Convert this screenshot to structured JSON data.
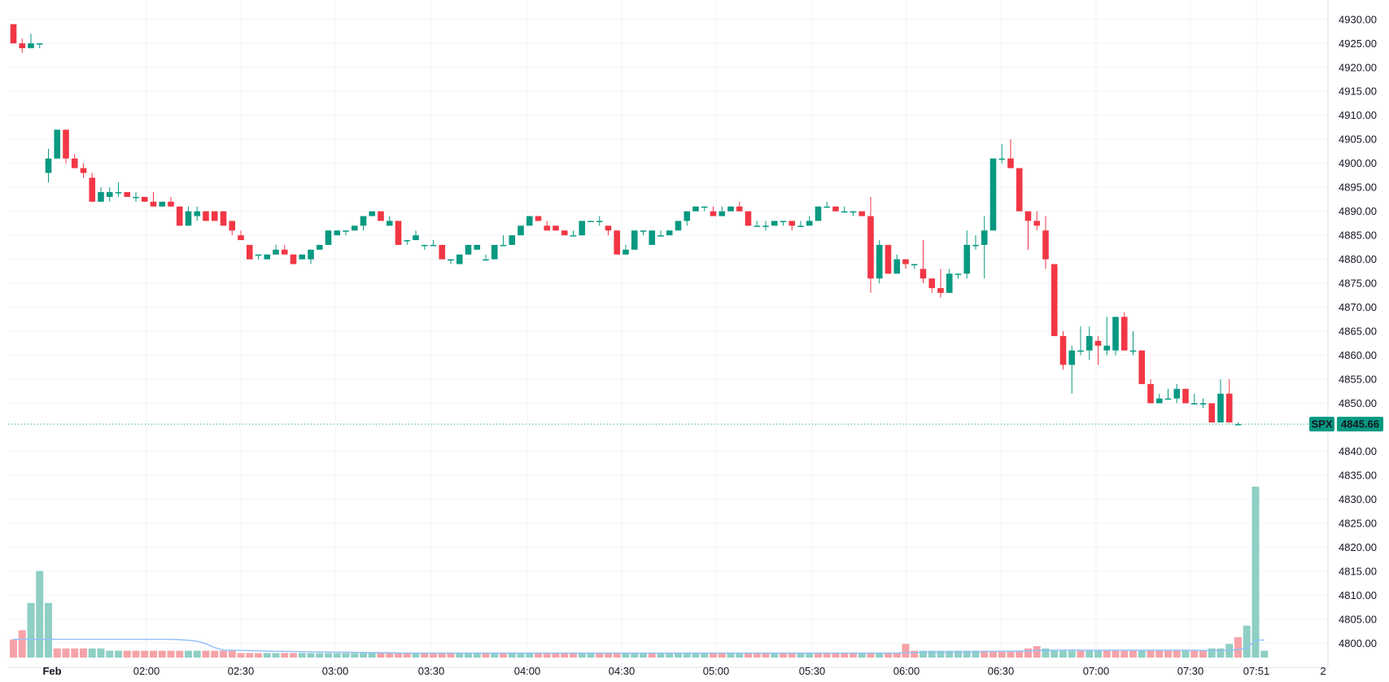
{
  "chart_data": {
    "type": "candlestick",
    "symbol": "SPX",
    "last_price": "4845.66",
    "y_axis": {
      "min": 4797,
      "max": 4932,
      "ticks": [
        "4930.00",
        "4925.00",
        "4920.00",
        "4915.00",
        "4910.00",
        "4905.00",
        "4900.00",
        "4895.00",
        "4890.00",
        "4885.00",
        "4880.00",
        "4875.00",
        "4870.00",
        "4865.00",
        "4860.00",
        "4855.00",
        "4850.00",
        "4840.00",
        "4835.00",
        "4830.00",
        "4825.00",
        "4820.00",
        "4815.00",
        "4810.00",
        "4805.00",
        "4800.00"
      ]
    },
    "x_axis": {
      "ticks": [
        "Feb",
        "02:00",
        "02:30",
        "03:00",
        "03:30",
        "04:00",
        "04:30",
        "05:00",
        "05:30",
        "06:00",
        "06:30",
        "07:00",
        "07:30",
        "07:51",
        "2"
      ]
    },
    "colors": {
      "up": "#089981",
      "down": "#f23645",
      "volume_up": "#8fcfc5",
      "volume_down": "#f5a3a8",
      "ma": "#90bff9",
      "grid": "#f0f3fa"
    },
    "candles": [
      [
        4929,
        4929,
        4925,
        4925
      ],
      [
        4925,
        4926,
        4923,
        4924
      ],
      [
        4924,
        4927,
        4924,
        4925
      ],
      [
        4925,
        4925,
        4924,
        4925
      ],
      [
        4898,
        4903,
        4896,
        4901
      ],
      [
        4901,
        4907,
        4901,
        4907
      ],
      [
        4907,
        4907,
        4900,
        4901
      ],
      [
        4901,
        4902,
        4899,
        4899
      ],
      [
        4899,
        4900,
        4897,
        4898
      ],
      [
        4897,
        4898,
        4892,
        4892
      ],
      [
        4892,
        4895,
        4892,
        4894
      ],
      [
        4893,
        4895,
        4892,
        4894
      ],
      [
        4894,
        4896,
        4893,
        4894
      ],
      [
        4894,
        4894,
        4893,
        4893
      ],
      [
        4893,
        4894,
        4892,
        4893
      ],
      [
        4893,
        4893,
        4892,
        4892
      ],
      [
        4892,
        4894,
        4891,
        4891
      ],
      [
        4891,
        4892,
        4891,
        4892
      ],
      [
        4892,
        4893,
        4891,
        4891
      ],
      [
        4891,
        4891,
        4887,
        4887
      ],
      [
        4887,
        4891,
        4887,
        4890
      ],
      [
        4889,
        4891,
        4888,
        4890
      ],
      [
        4890,
        4890,
        4888,
        4888
      ],
      [
        4890,
        4890,
        4888,
        4888
      ],
      [
        4890,
        4890,
        4887,
        4887
      ],
      [
        4888,
        4888,
        4885,
        4886
      ],
      [
        4885,
        4886,
        4884,
        4884
      ],
      [
        4883,
        4883,
        4880,
        4880
      ],
      [
        4881,
        4881,
        4880,
        4881
      ],
      [
        4880,
        4881,
        4880,
        4881
      ],
      [
        4881,
        4883,
        4881,
        4882
      ],
      [
        4882,
        4883,
        4881,
        4881
      ],
      [
        4881,
        4881,
        4879,
        4879
      ],
      [
        4880,
        4881,
        4880,
        4881
      ],
      [
        4880,
        4882,
        4879,
        4882
      ],
      [
        4882,
        4883,
        4882,
        4883
      ],
      [
        4883,
        4886,
        4883,
        4886
      ],
      [
        4885,
        4886,
        4885,
        4886
      ],
      [
        4886,
        4886,
        4885,
        4886
      ],
      [
        4886,
        4887,
        4886,
        4887
      ],
      [
        4887,
        4889,
        4886,
        4889
      ],
      [
        4889,
        4890,
        4889,
        4890
      ],
      [
        4890,
        4890,
        4888,
        4888
      ],
      [
        4887,
        4889,
        4887,
        4888
      ],
      [
        4888,
        4888,
        4883,
        4883
      ],
      [
        4884,
        4884,
        4883,
        4884
      ],
      [
        4884,
        4886,
        4884,
        4885
      ],
      [
        4883,
        4883,
        4882,
        4883
      ],
      [
        4883,
        4884,
        4883,
        4883
      ],
      [
        4883,
        4883,
        4880,
        4880
      ],
      [
        4880,
        4880,
        4879,
        4880
      ],
      [
        4879,
        4881,
        4879,
        4881
      ],
      [
        4881,
        4883,
        4881,
        4883
      ],
      [
        4882,
        4883,
        4882,
        4883
      ],
      [
        4880,
        4881,
        4880,
        4880
      ],
      [
        4880,
        4883,
        4880,
        4883
      ],
      [
        4883,
        4885,
        4883,
        4883
      ],
      [
        4883,
        4885,
        4883,
        4885
      ],
      [
        4885,
        4887,
        4885,
        4887
      ],
      [
        4887,
        4889,
        4887,
        4889
      ],
      [
        4889,
        4889,
        4888,
        4888
      ],
      [
        4887,
        4888,
        4886,
        4886
      ],
      [
        4887,
        4887,
        4886,
        4886
      ],
      [
        4886,
        4886,
        4885,
        4885
      ],
      [
        4885,
        4886,
        4885,
        4885
      ],
      [
        4885,
        4888,
        4885,
        4888
      ],
      [
        4888,
        4888,
        4888,
        4888
      ],
      [
        4888,
        4889,
        4887,
        4888
      ],
      [
        4887,
        4887,
        4885,
        4886
      ],
      [
        4886,
        4886,
        4881,
        4881
      ],
      [
        4881,
        4883,
        4881,
        4882
      ],
      [
        4882,
        4886,
        4882,
        4886
      ],
      [
        4886,
        4886,
        4885,
        4886
      ],
      [
        4883,
        4886,
        4883,
        4886
      ],
      [
        4885,
        4886,
        4885,
        4885
      ],
      [
        4885,
        4886,
        4885,
        4886
      ],
      [
        4886,
        4888,
        4886,
        4888
      ],
      [
        4888,
        4890,
        4887,
        4890
      ],
      [
        4890,
        4891,
        4890,
        4891
      ],
      [
        4891,
        4891,
        4890,
        4891
      ],
      [
        4890,
        4891,
        4889,
        4889
      ],
      [
        4889,
        4891,
        4889,
        4890
      ],
      [
        4890,
        4891,
        4890,
        4891
      ],
      [
        4891,
        4892,
        4890,
        4890
      ],
      [
        4890,
        4890,
        4887,
        4887
      ],
      [
        4887,
        4888,
        4887,
        4887
      ],
      [
        4887,
        4888,
        4886,
        4887
      ],
      [
        4887,
        4888,
        4887,
        4888
      ],
      [
        4888,
        4888,
        4887,
        4888
      ],
      [
        4888,
        4888,
        4886,
        4887
      ],
      [
        4887,
        4888,
        4887,
        4887
      ],
      [
        4887,
        4889,
        4887,
        4888
      ],
      [
        4888,
        4891,
        4888,
        4891
      ],
      [
        4891,
        4892,
        4891,
        4891
      ],
      [
        4891,
        4891,
        4890,
        4890
      ],
      [
        4890,
        4891,
        4890,
        4890
      ],
      [
        4890,
        4890,
        4889,
        4890
      ],
      [
        4890,
        4890,
        4889,
        4889
      ],
      [
        4889,
        4893,
        4873,
        4876
      ],
      [
        4876,
        4884,
        4875,
        4883
      ],
      [
        4883,
        4883,
        4877,
        4877
      ],
      [
        4877,
        4881,
        4877,
        4880
      ],
      [
        4880,
        4880,
        4878,
        4879
      ],
      [
        4879,
        4879,
        4878,
        4879
      ],
      [
        4878,
        4884,
        4875,
        4876
      ],
      [
        4876,
        4876,
        4873,
        4874
      ],
      [
        4874,
        4878,
        4872,
        4873
      ],
      [
        4873,
        4878,
        4873,
        4877
      ],
      [
        4877,
        4877,
        4876,
        4877
      ],
      [
        4877,
        4886,
        4876,
        4883
      ],
      [
        4883,
        4885,
        4882,
        4883
      ],
      [
        4883,
        4889,
        4876,
        4886
      ],
      [
        4886,
        4901,
        4886,
        4901
      ],
      [
        4901,
        4904,
        4900,
        4901
      ],
      [
        4901,
        4905,
        4899,
        4899
      ],
      [
        4899,
        4899,
        4890,
        4890
      ],
      [
        4890,
        4890,
        4882,
        4888
      ],
      [
        4888,
        4890,
        4886,
        4887
      ],
      [
        4886,
        4889,
        4878,
        4880
      ],
      [
        4879,
        4879,
        4864,
        4864
      ],
      [
        4864,
        4865,
        4857,
        4858
      ],
      [
        4858,
        4862,
        4852,
        4861
      ],
      [
        4861,
        4866,
        4860,
        4861
      ],
      [
        4861,
        4866,
        4859,
        4864
      ],
      [
        4863,
        4864,
        4858,
        4862
      ],
      [
        4861,
        4868,
        4860,
        4862
      ],
      [
        4861,
        4868,
        4860,
        4868
      ],
      [
        4868,
        4869,
        4861,
        4861
      ],
      [
        4861,
        4865,
        4860,
        4861
      ],
      [
        4861,
        4861,
        4854,
        4854
      ],
      [
        4854,
        4855,
        4850,
        4850
      ],
      [
        4850,
        4852,
        4850,
        4851
      ],
      [
        4851,
        4853,
        4851,
        4851
      ],
      [
        4851,
        4854,
        4850,
        4853
      ],
      [
        4853,
        4853,
        4850,
        4850
      ],
      [
        4850,
        4852,
        4850,
        4850
      ],
      [
        4850,
        4851,
        4849,
        4850
      ],
      [
        4850,
        4850,
        4846,
        4846
      ],
      [
        4846,
        4855,
        4846,
        4852
      ],
      [
        4852,
        4855,
        4846,
        4846
      ],
      [
        4845.5,
        4846,
        4845.5,
        4845.66
      ]
    ],
    "volume_direction": [
      "down",
      "down",
      "up",
      "up",
      "up",
      "down",
      "down",
      "down",
      "down",
      "up",
      "up",
      "up",
      "up",
      "down",
      "down",
      "down",
      "down",
      "down",
      "down",
      "down",
      "up",
      "up",
      "down",
      "down",
      "down",
      "down",
      "down",
      "down",
      "down",
      "up",
      "up",
      "down",
      "down",
      "up",
      "up",
      "up",
      "up",
      "up",
      "up",
      "up",
      "up",
      "up",
      "down",
      "down",
      "down",
      "down",
      "up",
      "down",
      "down",
      "down",
      "down",
      "up",
      "up",
      "up",
      "down",
      "up",
      "down",
      "up",
      "up",
      "up",
      "down",
      "down",
      "down",
      "down",
      "down",
      "up",
      "up",
      "down",
      "down",
      "down",
      "up",
      "up",
      "up",
      "down",
      "up",
      "up",
      "up",
      "up",
      "up",
      "up",
      "down",
      "down",
      "up",
      "up",
      "down",
      "down",
      "down",
      "up",
      "down",
      "down",
      "up",
      "up",
      "down",
      "down",
      "down",
      "down",
      "down",
      "up",
      "down",
      "up",
      "down",
      "down",
      "down",
      "down",
      "up",
      "up",
      "up",
      "up",
      "up",
      "up",
      "up",
      "down",
      "down",
      "down",
      "down",
      "down",
      "down",
      "down",
      "up",
      "up",
      "up",
      "up",
      "down",
      "up",
      "up",
      "down",
      "down",
      "down",
      "down",
      "up",
      "down",
      "down",
      "down",
      "down",
      "up",
      "down",
      "down",
      "up",
      "up",
      "up",
      "down",
      "up"
    ],
    "volume_values": [
      8,
      12,
      24,
      38,
      24,
      4,
      4,
      4,
      4,
      4,
      4,
      3,
      3,
      3,
      3,
      3,
      3,
      3,
      3,
      3,
      3,
      3,
      3,
      3,
      3,
      3,
      2,
      2,
      2,
      2,
      2,
      2,
      2,
      2,
      2,
      2,
      2,
      2,
      2,
      2,
      2,
      2,
      2,
      2,
      2,
      2,
      2,
      2,
      2,
      2,
      2,
      2,
      2,
      2,
      2,
      2,
      2,
      2,
      2,
      2,
      2,
      2,
      2,
      2,
      2,
      2,
      2,
      2,
      2,
      2,
      2,
      2,
      2,
      2,
      2,
      2,
      2,
      2,
      2,
      2,
      2,
      2,
      2,
      2,
      2,
      2,
      2,
      2,
      2,
      2,
      2,
      2,
      2,
      2,
      2,
      2,
      2,
      2,
      2,
      2,
      2,
      2,
      6,
      3,
      3,
      3,
      3,
      3,
      3,
      3,
      3,
      3,
      3,
      3,
      3,
      3,
      4,
      5,
      4,
      3,
      3,
      3,
      3,
      3,
      3,
      3,
      3,
      3,
      3,
      3,
      3,
      3,
      3,
      3,
      3,
      3,
      3,
      4,
      4,
      6,
      9,
      14,
      75,
      3
    ]
  }
}
